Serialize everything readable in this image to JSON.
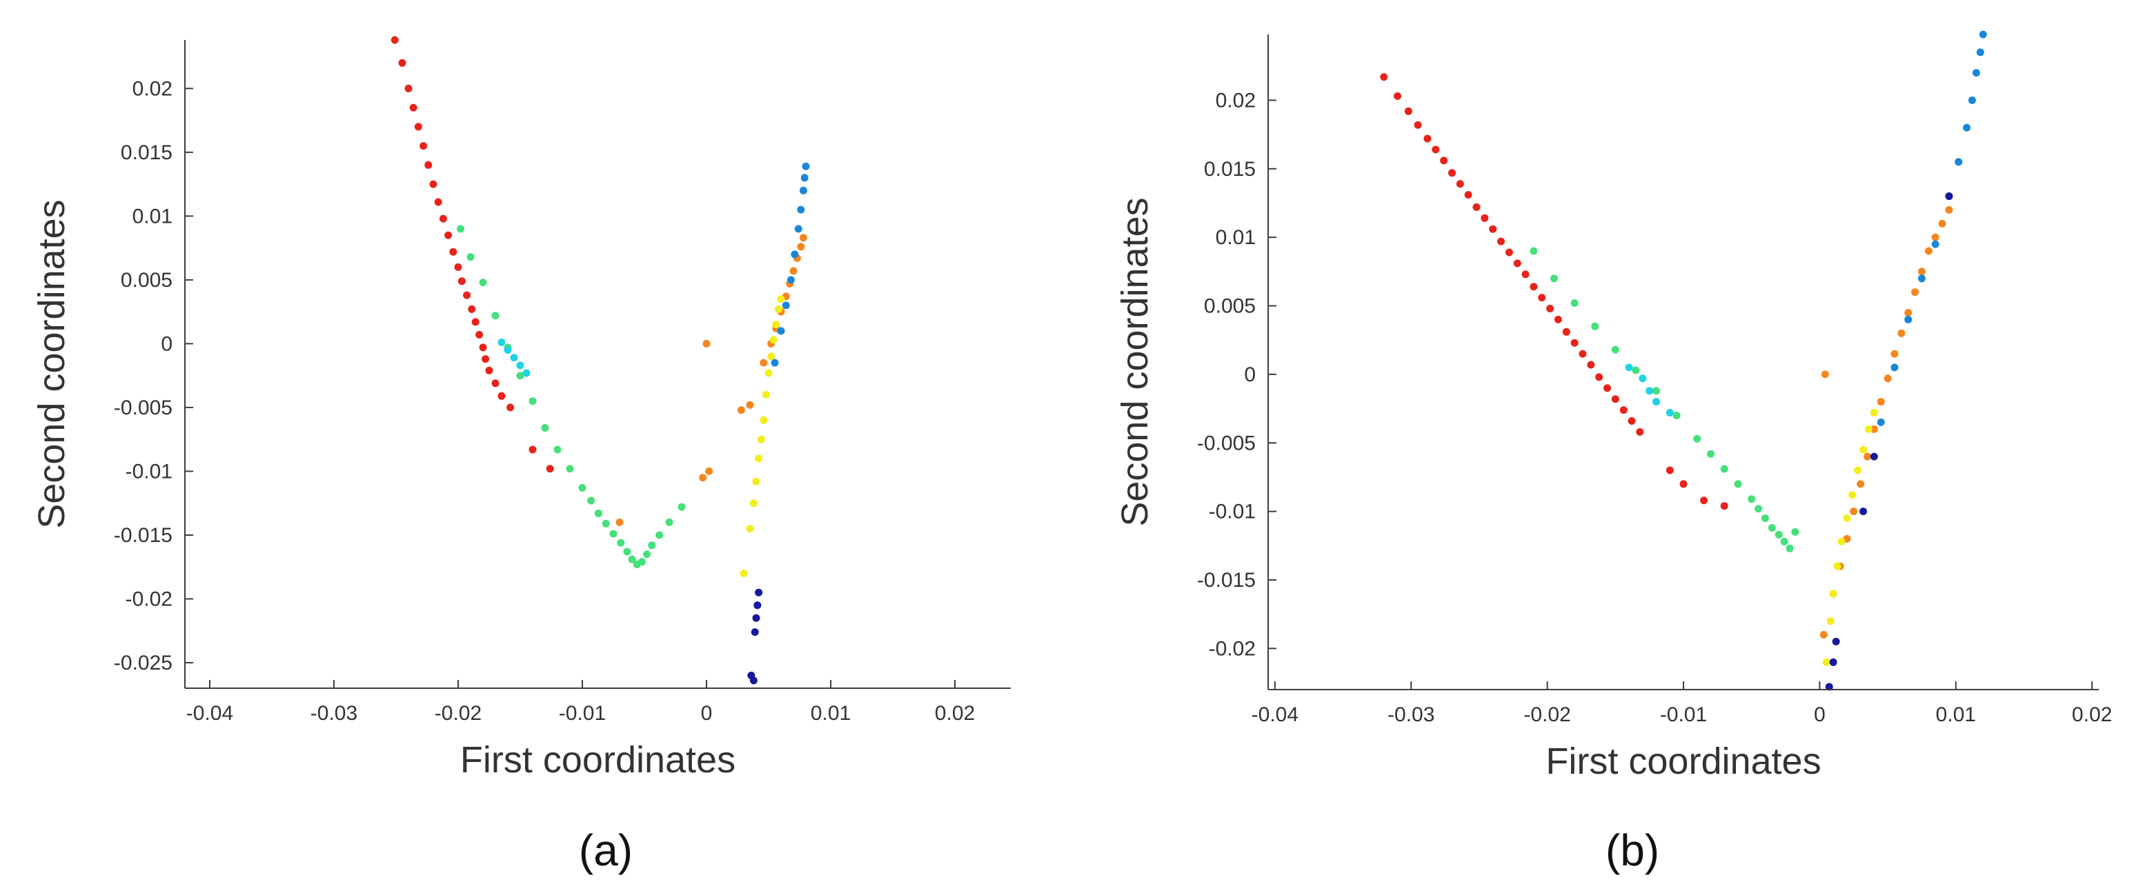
{
  "colors": {
    "red": "#e8231a",
    "green": "#44e07a",
    "cyan": "#1fd3e6",
    "orange": "#f5861e",
    "yellow": "#f3ee1b",
    "blue": "#1a86d8",
    "navy": "#17189c"
  },
  "chart_data": [
    {
      "type": "scatter",
      "caption": "(a)",
      "xlabel": "First coordinates",
      "ylabel": "Second coordinates",
      "xlim": [
        -0.042,
        0.0245
      ],
      "ylim": [
        -0.027,
        0.0238
      ],
      "xticks": [
        -0.04,
        -0.03,
        -0.02,
        -0.01,
        0,
        0.01,
        0.02
      ],
      "xtick_labels": [
        "-0.04",
        "-0.03",
        "-0.02",
        "-0.01",
        "0",
        "0.01",
        "0.02"
      ],
      "yticks": [
        -0.025,
        -0.02,
        -0.015,
        -0.01,
        -0.005,
        0,
        0.005,
        0.01,
        0.015,
        0.02
      ],
      "ytick_labels": [
        "-0.025",
        "-0.02",
        "-0.015",
        "-0.01",
        "-0.005",
        "0",
        "0.005",
        "0.01",
        "0.015",
        "0.02"
      ],
      "grid": false,
      "series": [
        {
          "color": "red",
          "x": [
            -0.0251,
            -0.0245,
            -0.024,
            -0.0236,
            -0.0232,
            -0.0228,
            -0.0224,
            -0.022,
            -0.0216,
            -0.0212,
            -0.0208,
            -0.0204,
            -0.02,
            -0.0197,
            -0.0193,
            -0.0189,
            -0.0186,
            -0.0183,
            -0.018,
            -0.0178,
            -0.0175,
            -0.017,
            -0.0165,
            -0.0158,
            -0.014,
            -0.0126
          ],
          "y": [
            0.0238,
            0.022,
            0.02,
            0.0185,
            0.017,
            0.0155,
            0.014,
            0.0125,
            0.0111,
            0.0098,
            0.0085,
            0.0072,
            0.006,
            0.0049,
            0.0038,
            0.0027,
            0.0017,
            0.0007,
            -0.0003,
            -0.0012,
            -0.0021,
            -0.0031,
            -0.0041,
            -0.005,
            -0.0083,
            -0.0098
          ]
        },
        {
          "color": "green",
          "x": [
            -0.0198,
            -0.019,
            -0.018,
            -0.017,
            -0.016,
            -0.015,
            -0.014,
            -0.013,
            -0.012,
            -0.011,
            -0.01,
            -0.0093,
            -0.0087,
            -0.0081,
            -0.0075,
            -0.0069,
            -0.0064,
            -0.006,
            -0.0056,
            -0.0052,
            -0.0048,
            -0.0044,
            -0.0038,
            -0.003,
            -0.002
          ],
          "y": [
            0.009,
            0.0068,
            0.0048,
            0.0022,
            -0.0003,
            -0.0025,
            -0.0045,
            -0.0066,
            -0.0083,
            -0.0098,
            -0.0113,
            -0.0123,
            -0.0133,
            -0.0141,
            -0.0149,
            -0.0156,
            -0.0163,
            -0.0169,
            -0.0173,
            -0.0171,
            -0.0165,
            -0.0158,
            -0.015,
            -0.014,
            -0.0128
          ]
        },
        {
          "color": "cyan",
          "x": [
            -0.0165,
            -0.016,
            -0.0155,
            -0.015,
            -0.0145
          ],
          "y": [
            0.0001,
            -0.0005,
            -0.0011,
            -0.0017,
            -0.0023
          ]
        },
        {
          "color": "orange",
          "x": [
            0.0,
            0.0002,
            -0.0003,
            0.0028,
            0.0035,
            0.0046,
            0.0052,
            0.0056,
            0.006,
            0.0064,
            0.0067,
            0.007,
            0.0073,
            0.0076,
            0.0078,
            -0.007
          ],
          "y": [
            0.0,
            -0.01,
            -0.0105,
            -0.0052,
            -0.0048,
            -0.0015,
            0.0,
            0.0012,
            0.0025,
            0.0037,
            0.0047,
            0.0057,
            0.0067,
            0.0076,
            0.0083,
            -0.014
          ]
        },
        {
          "color": "yellow",
          "x": [
            0.003,
            0.0035,
            0.0038,
            0.004,
            0.0042,
            0.0044,
            0.0046,
            0.0048,
            0.005,
            0.0052,
            0.0054,
            0.0056,
            0.0058,
            0.006
          ],
          "y": [
            -0.018,
            -0.0145,
            -0.0125,
            -0.0108,
            -0.009,
            -0.0075,
            -0.006,
            -0.004,
            -0.0023,
            -0.001,
            0.0003,
            0.0015,
            0.0027,
            0.0035
          ]
        },
        {
          "color": "blue",
          "x": [
            0.0055,
            0.006,
            0.0064,
            0.0068,
            0.0071,
            0.0074,
            0.0076,
            0.0078,
            0.0079,
            0.008
          ],
          "y": [
            -0.0015,
            0.001,
            0.003,
            0.005,
            0.007,
            0.009,
            0.0105,
            0.012,
            0.013,
            0.0139
          ]
        },
        {
          "color": "navy",
          "x": [
            0.0036,
            0.0038,
            0.0039,
            0.004,
            0.0041,
            0.0042
          ],
          "y": [
            -0.026,
            -0.0264,
            -0.0226,
            -0.0215,
            -0.0205,
            -0.0195
          ]
        }
      ]
    },
    {
      "type": "scatter",
      "caption": "(b)",
      "xlabel": "First coordinates",
      "ylabel": "Second coordinates",
      "xlim": [
        -0.0405,
        0.0205
      ],
      "ylim": [
        -0.023,
        0.0248
      ],
      "xticks": [
        -0.04,
        -0.03,
        -0.02,
        -0.01,
        0,
        0.01,
        0.02
      ],
      "xtick_labels": [
        "-0.04",
        "-0.03",
        "-0.02",
        "-0.01",
        "0",
        "0.01",
        "0.02"
      ],
      "yticks": [
        -0.02,
        -0.015,
        -0.01,
        -0.005,
        0,
        0.005,
        0.01,
        0.015,
        0.02
      ],
      "ytick_labels": [
        "-0.02",
        "-0.015",
        "-0.01",
        "-0.005",
        "0",
        "0.005",
        "0.01",
        "0.015",
        "0.02"
      ],
      "grid": false,
      "series": [
        {
          "color": "red",
          "x": [
            -0.032,
            -0.031,
            -0.0302,
            -0.0295,
            -0.0288,
            -0.0282,
            -0.0276,
            -0.027,
            -0.0264,
            -0.0258,
            -0.0252,
            -0.0246,
            -0.024,
            -0.0234,
            -0.0228,
            -0.0222,
            -0.0216,
            -0.021,
            -0.0204,
            -0.0198,
            -0.0192,
            -0.0186,
            -0.018,
            -0.0174,
            -0.0168,
            -0.0162,
            -0.0156,
            -0.015,
            -0.0144,
            -0.0138,
            -0.0132,
            -0.011,
            -0.01,
            -0.0085,
            -0.007
          ],
          "y": [
            0.0217,
            0.0203,
            0.0192,
            0.0182,
            0.0172,
            0.0164,
            0.0156,
            0.0147,
            0.0139,
            0.0131,
            0.0122,
            0.0114,
            0.0106,
            0.0097,
            0.0089,
            0.0081,
            0.0073,
            0.0064,
            0.0056,
            0.0048,
            0.004,
            0.0031,
            0.0023,
            0.0015,
            0.0007,
            -0.0002,
            -0.001,
            -0.0018,
            -0.0026,
            -0.0034,
            -0.0042,
            -0.007,
            -0.008,
            -0.0092,
            -0.0096
          ]
        },
        {
          "color": "green",
          "x": [
            -0.021,
            -0.0195,
            -0.018,
            -0.0165,
            -0.015,
            -0.0135,
            -0.012,
            -0.0105,
            -0.009,
            -0.008,
            -0.007,
            -0.006,
            -0.005,
            -0.0045,
            -0.004,
            -0.0035,
            -0.003,
            -0.0026,
            -0.0022,
            -0.0018
          ],
          "y": [
            0.009,
            0.007,
            0.0052,
            0.0035,
            0.0018,
            0.0003,
            -0.0012,
            -0.003,
            -0.0047,
            -0.0058,
            -0.0069,
            -0.008,
            -0.0091,
            -0.0098,
            -0.0105,
            -0.0112,
            -0.0117,
            -0.0122,
            -0.0127,
            -0.0115
          ]
        },
        {
          "color": "cyan",
          "x": [
            -0.014,
            -0.013,
            -0.0125,
            -0.012,
            -0.011
          ],
          "y": [
            0.0005,
            -0.0003,
            -0.0012,
            -0.002,
            -0.0028
          ]
        },
        {
          "color": "orange",
          "x": [
            0.0003,
            0.001,
            0.0015,
            0.002,
            0.0025,
            0.003,
            0.0035,
            0.004,
            0.0045,
            0.005,
            0.0055,
            0.006,
            0.0065,
            0.007,
            0.0075,
            0.008,
            0.0085,
            0.009,
            0.0095,
            0.0004
          ],
          "y": [
            -0.019,
            -0.016,
            -0.014,
            -0.012,
            -0.01,
            -0.008,
            -0.006,
            -0.004,
            -0.002,
            -0.0003,
            0.0015,
            0.003,
            0.0045,
            0.006,
            0.0075,
            0.009,
            0.01,
            0.011,
            0.012,
            0.0
          ]
        },
        {
          "color": "yellow",
          "x": [
            0.0005,
            0.0008,
            0.001,
            0.0013,
            0.0016,
            0.002,
            0.0024,
            0.0028,
            0.0032,
            0.0036,
            0.004
          ],
          "y": [
            -0.021,
            -0.018,
            -0.016,
            -0.014,
            -0.0122,
            -0.0105,
            -0.0088,
            -0.007,
            -0.0055,
            -0.004,
            -0.0028
          ]
        },
        {
          "color": "blue",
          "x": [
            0.0045,
            0.0055,
            0.0065,
            0.0075,
            0.0085,
            0.0095,
            0.0102,
            0.0108,
            0.0112,
            0.0115,
            0.0118,
            0.012
          ],
          "y": [
            -0.0035,
            0.0005,
            0.004,
            0.007,
            0.0095,
            0.013,
            0.0155,
            0.018,
            0.02,
            0.022,
            0.0235,
            0.0248
          ]
        },
        {
          "color": "navy",
          "x": [
            0.0007,
            0.001,
            0.0012,
            0.0032,
            0.004,
            0.0095
          ],
          "y": [
            -0.0228,
            -0.021,
            -0.0195,
            -0.01,
            -0.006,
            0.013
          ]
        }
      ]
    }
  ]
}
